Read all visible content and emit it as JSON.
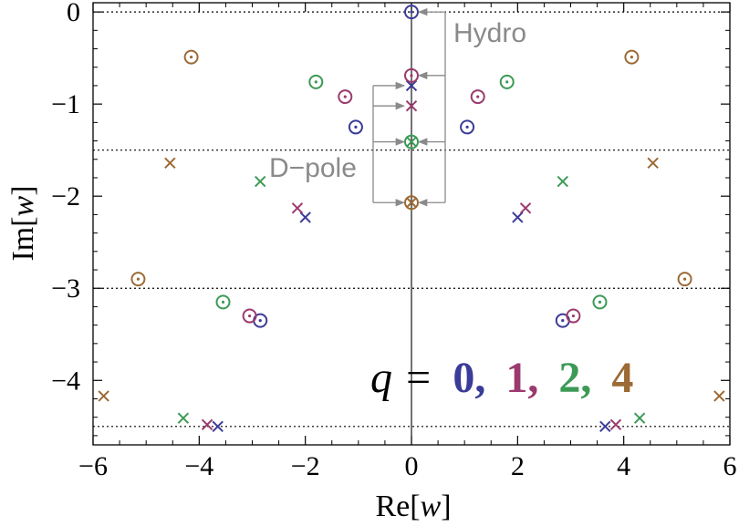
{
  "chart_data": {
    "type": "scatter",
    "xlabel": "Re[w]",
    "ylabel": "Im[w]",
    "xlim": [
      -6,
      6
    ],
    "ylim": [
      -4.7,
      0.1
    ],
    "x_ticks": [
      -6,
      -4,
      -2,
      0,
      2,
      4,
      6
    ],
    "y_ticks": [
      0,
      -1,
      -2,
      -3,
      -4
    ],
    "x_tick_labels": [
      "−6",
      "−4",
      "−2",
      "0",
      "2",
      "4",
      "6"
    ],
    "y_tick_labels": [
      "0",
      "−1",
      "−2",
      "−3",
      "−4"
    ],
    "reference_lines_y": [
      0,
      -1.5,
      -3,
      -4.5
    ],
    "legend_text": {
      "prefix": "q =",
      "items": [
        {
          "label": "0,",
          "color": "#3b3b98"
        },
        {
          "label": "1,",
          "color": "#9b3a6e"
        },
        {
          "label": "2,",
          "color": "#3c9a55"
        },
        {
          "label": "4",
          "color": "#9b6a35"
        }
      ]
    },
    "annotations": {
      "hydro": "Hydro",
      "dpole": "D−pole"
    },
    "series": [
      {
        "color": "#3b3b98",
        "circles": [
          [
            0,
            0
          ],
          [
            -1.05,
            -1.25
          ],
          [
            1.05,
            -1.25
          ],
          [
            -2.85,
            -3.35
          ],
          [
            2.85,
            -3.35
          ]
        ],
        "crosses": [
          [
            0,
            -0.8
          ],
          [
            -2.0,
            -2.23
          ],
          [
            2.0,
            -2.23
          ],
          [
            -3.65,
            -4.5
          ],
          [
            3.65,
            -4.5
          ]
        ]
      },
      {
        "color": "#9b3a6e",
        "circles": [
          [
            0,
            -0.69
          ],
          [
            -1.25,
            -0.92
          ],
          [
            1.25,
            -0.92
          ],
          [
            -3.05,
            -3.3
          ],
          [
            3.05,
            -3.3
          ]
        ],
        "crosses": [
          [
            0,
            -1.02
          ],
          [
            -2.15,
            -2.13
          ],
          [
            2.15,
            -2.13
          ],
          [
            -3.85,
            -4.48
          ],
          [
            3.85,
            -4.48
          ]
        ]
      },
      {
        "color": "#3c9a55",
        "circles": [
          [
            0,
            -1.41
          ],
          [
            -1.8,
            -0.76
          ],
          [
            1.8,
            -0.76
          ],
          [
            -3.55,
            -3.15
          ],
          [
            3.55,
            -3.15
          ]
        ],
        "crosses": [
          [
            0,
            -1.41
          ],
          [
            -2.85,
            -1.84
          ],
          [
            2.85,
            -1.84
          ],
          [
            -4.3,
            -4.41
          ],
          [
            4.3,
            -4.41
          ]
        ]
      },
      {
        "color": "#9b6a35",
        "circles": [
          [
            0,
            -2.07
          ],
          [
            -4.15,
            -0.49
          ],
          [
            4.15,
            -0.49
          ],
          [
            -5.15,
            -2.9
          ],
          [
            5.15,
            -2.9
          ]
        ],
        "crosses": [
          [
            0,
            -2.07
          ],
          [
            -4.55,
            -1.64
          ],
          [
            4.55,
            -1.64
          ],
          [
            -5.8,
            -4.17
          ],
          [
            5.8,
            -4.17
          ]
        ]
      }
    ]
  }
}
